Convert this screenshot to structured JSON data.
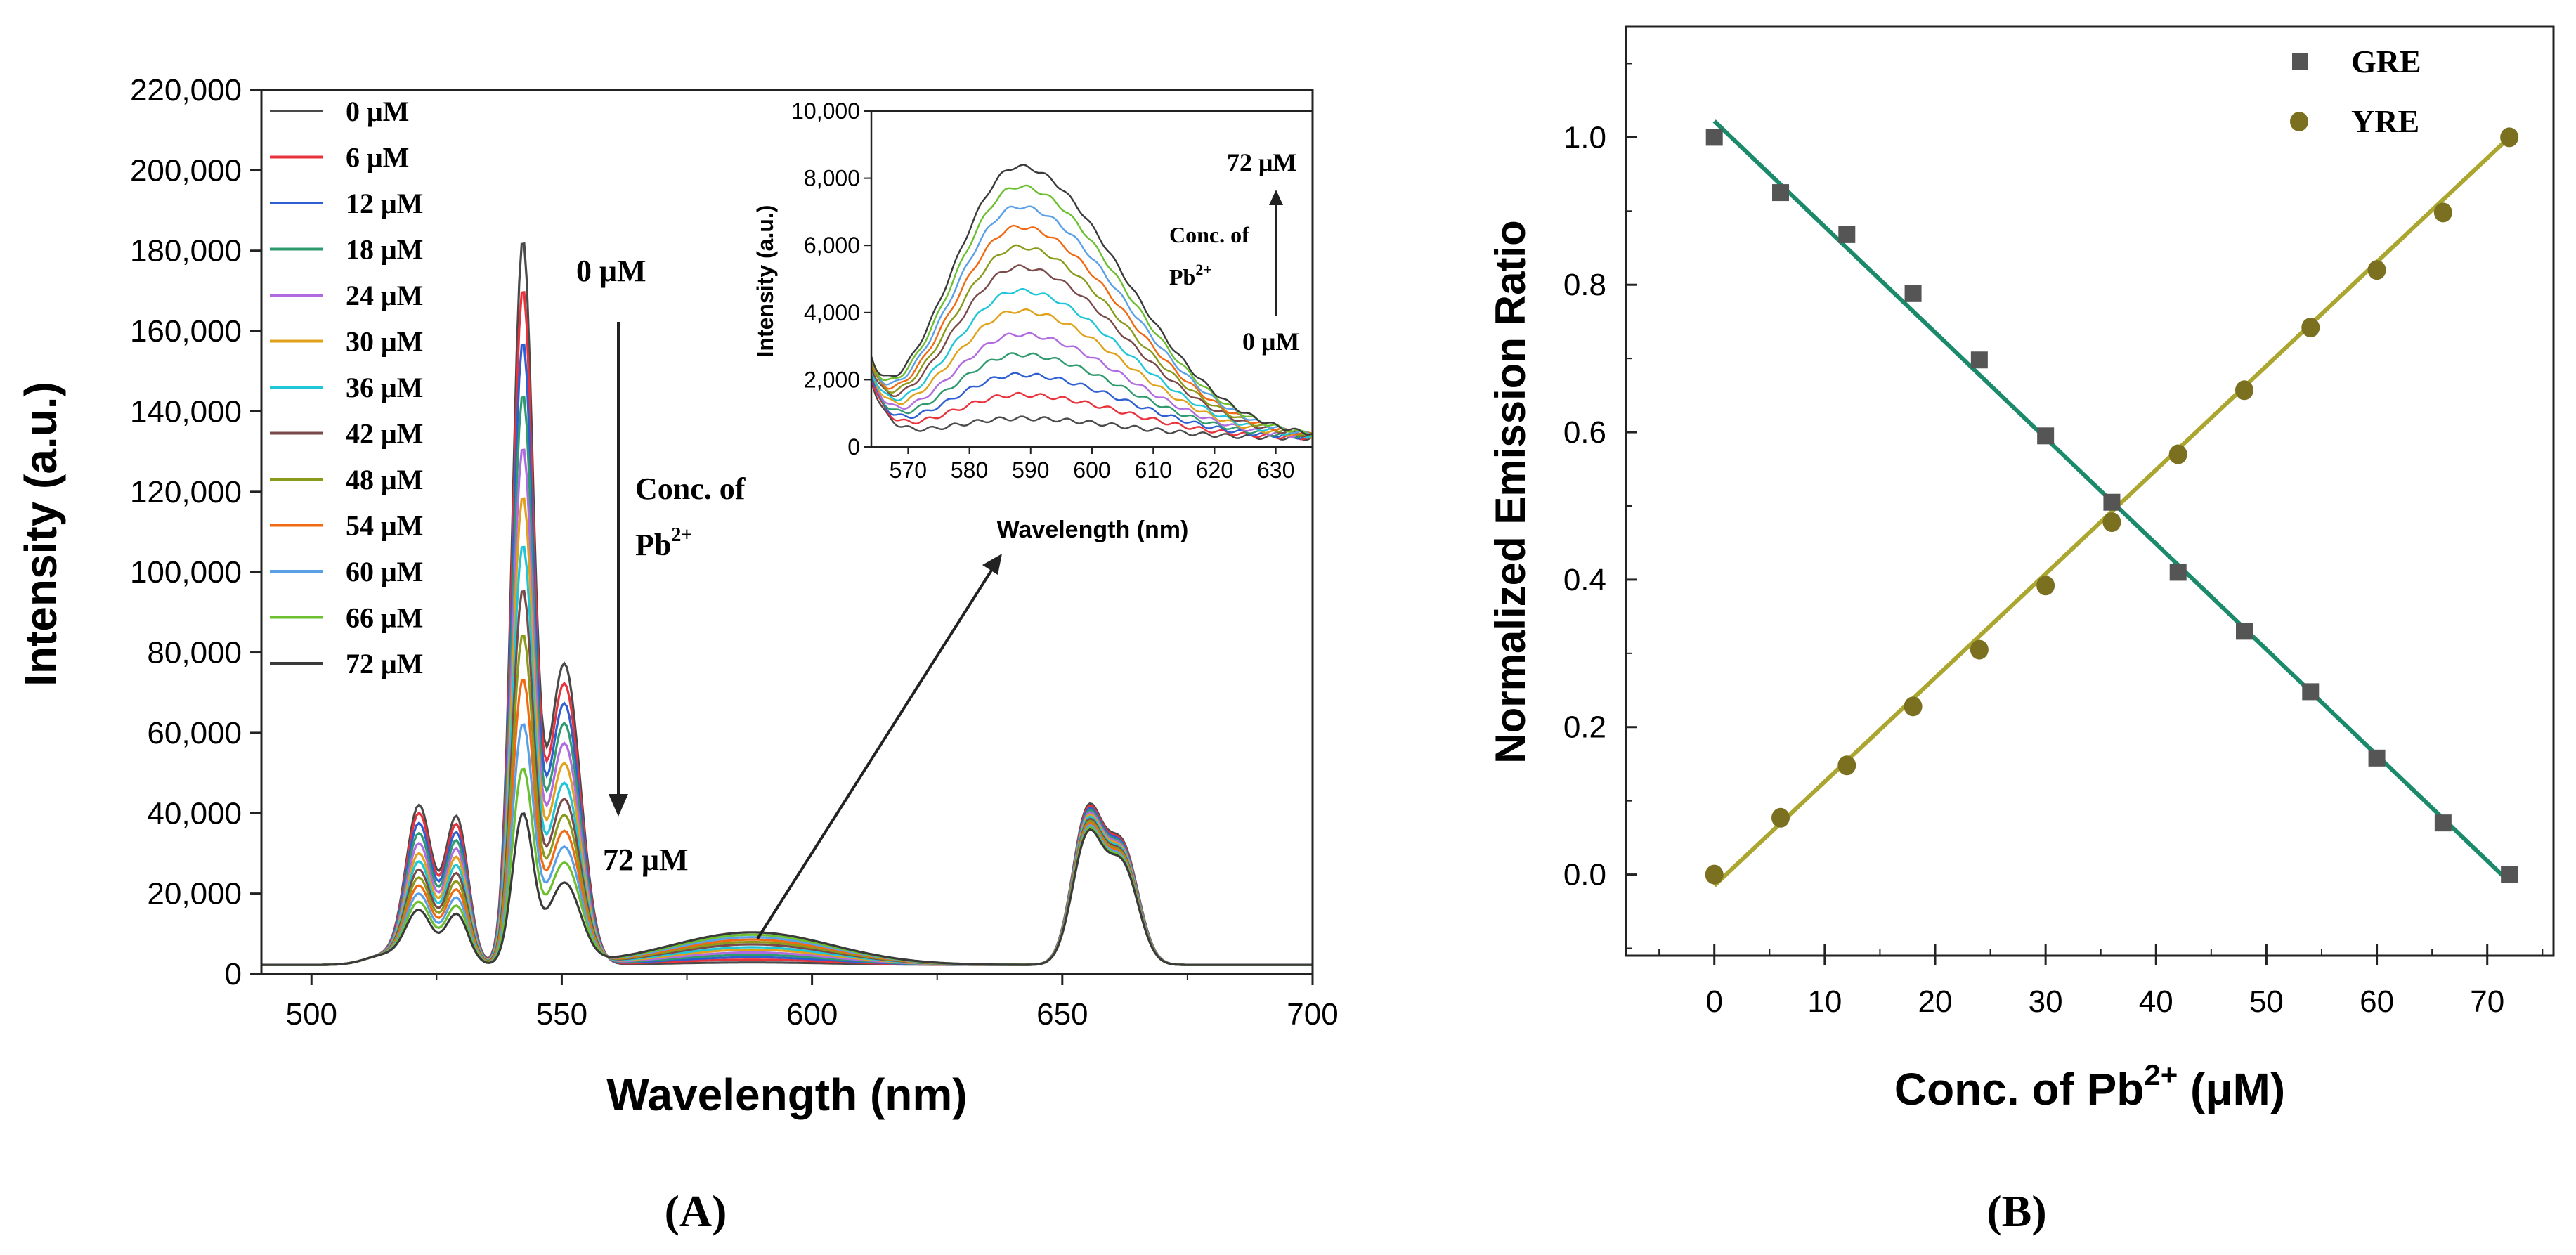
{
  "panel_labels": {
    "a": "(A)",
    "b": "(B)"
  },
  "chart_data": [
    {
      "id": "A",
      "type": "line",
      "xlabel": "Wavelength (nm)",
      "ylabel": "Intensity (a.u.)",
      "xlim": [
        490,
        700
      ],
      "ylim": [
        0,
        220000
      ],
      "xticks": [
        500,
        550,
        600,
        650,
        700
      ],
      "yticks": [
        0,
        20000,
        40000,
        60000,
        80000,
        100000,
        120000,
        140000,
        160000,
        180000,
        200000,
        220000
      ],
      "xtick_labels": [
        "500",
        "550",
        "600",
        "650",
        "700"
      ],
      "ytick_labels": [
        "0",
        "20,000",
        "40,000",
        "60,000",
        "80,000",
        "100,000",
        "120,000",
        "140,000",
        "160,000",
        "180,000",
        "200,000",
        "220,000"
      ],
      "legend": {
        "position": "top-left",
        "entries": [
          "0 μM",
          "6 μM",
          "12 μM",
          "18 μM",
          "24 μM",
          "30 μM",
          "36 μM",
          "42 μM",
          "48 μM",
          "54 μM",
          "60 μM",
          "66 μM",
          "72 μM"
        ]
      },
      "annotations": {
        "top": "0 μM",
        "conc_line1": "Conc. of",
        "conc_line2": "Pb",
        "conc_sup": "2+",
        "bottom": "72 μM"
      },
      "series": [
        {
          "name": "0 μM",
          "color": "#4a4a4a",
          "peak_542": 178000,
          "peak_521": 39000,
          "peak_529": 36500,
          "shoulder_550": 75000,
          "peak_588": 600,
          "peak_655": 37000
        },
        {
          "name": "6 μM",
          "color": "#e8323c",
          "peak_542": 166000,
          "peak_521": 37000,
          "peak_529": 34500,
          "shoulder_550": 70000,
          "peak_588": 1300,
          "peak_655": 36500
        },
        {
          "name": "12 μM",
          "color": "#2d5fd2",
          "peak_542": 153000,
          "peak_521": 34500,
          "peak_529": 32500,
          "shoulder_550": 65000,
          "peak_588": 1900,
          "peak_655": 36000
        },
        {
          "name": "18 μM",
          "color": "#2f9a6e",
          "peak_542": 140000,
          "peak_521": 32000,
          "peak_529": 30500,
          "shoulder_550": 60000,
          "peak_588": 2500,
          "peak_655": 35500
        },
        {
          "name": "24 μM",
          "color": "#b06be0",
          "peak_542": 127000,
          "peak_521": 29500,
          "peak_529": 28500,
          "shoulder_550": 55000,
          "peak_588": 3100,
          "peak_655": 35000
        },
        {
          "name": "30 μM",
          "color": "#e0a21a",
          "peak_542": 115000,
          "peak_521": 27000,
          "peak_529": 26500,
          "shoulder_550": 50000,
          "peak_588": 3800,
          "peak_655": 34500
        },
        {
          "name": "36 μM",
          "color": "#1fc6d8",
          "peak_542": 103000,
          "peak_521": 25000,
          "peak_529": 24500,
          "shoulder_550": 45000,
          "peak_588": 4400,
          "peak_655": 34000
        },
        {
          "name": "42 μM",
          "color": "#7a4a4a",
          "peak_542": 92000,
          "peak_521": 23000,
          "peak_529": 22500,
          "shoulder_550": 41000,
          "peak_588": 5100,
          "peak_655": 33500
        },
        {
          "name": "48 μM",
          "color": "#8a9a1a",
          "peak_542": 81000,
          "peak_521": 21000,
          "peak_529": 20500,
          "shoulder_550": 37000,
          "peak_588": 5700,
          "peak_655": 33000
        },
        {
          "name": "54 μM",
          "color": "#f06a14",
          "peak_542": 70000,
          "peak_521": 19000,
          "peak_529": 18500,
          "shoulder_550": 33000,
          "peak_588": 6300,
          "peak_655": 32500
        },
        {
          "name": "60 μM",
          "color": "#5aa0e6",
          "peak_542": 59000,
          "peak_521": 17000,
          "peak_529": 16500,
          "shoulder_550": 29000,
          "peak_588": 6900,
          "peak_655": 32000
        },
        {
          "name": "66 μM",
          "color": "#6cc030",
          "peak_542": 48000,
          "peak_521": 15000,
          "peak_529": 14500,
          "shoulder_550": 25000,
          "peak_588": 7500,
          "peak_655": 31500
        },
        {
          "name": "72 μM",
          "color": "#3a3a3a",
          "peak_542": 37000,
          "peak_521": 13000,
          "peak_529": 12500,
          "shoulder_550": 20000,
          "peak_588": 8100,
          "peak_655": 31000
        }
      ]
    },
    {
      "id": "A-inset",
      "type": "line",
      "xlabel": "Wavelength (nm)",
      "ylabel": "Intensity (a.u.)",
      "xlim": [
        564,
        636
      ],
      "ylim": [
        0,
        10000
      ],
      "xticks": [
        570,
        580,
        590,
        600,
        610,
        620,
        630
      ],
      "yticks": [
        0,
        2000,
        4000,
        6000,
        8000,
        10000
      ],
      "xtick_labels": [
        "570",
        "580",
        "590",
        "600",
        "610",
        "620",
        "630"
      ],
      "ytick_labels": [
        "0",
        "2,000",
        "4,000",
        "6,000",
        "8,000",
        "10,000"
      ],
      "annotations": {
        "top": "72 μM",
        "conc_line1": "Conc. of",
        "conc_line2": "Pb",
        "conc_sup": "2+",
        "bottom": "0 μM"
      },
      "peak_wavelength": 588,
      "series_peaks": [
        600,
        1300,
        1900,
        2500,
        3100,
        3800,
        4400,
        5100,
        5700,
        6300,
        6900,
        7500,
        8100
      ]
    },
    {
      "id": "B",
      "type": "scatter",
      "xlabel": "Conc. of Pb",
      "xlabel_sup": "2+",
      "xlabel_unit": " (μM)",
      "ylabel": "Normalized Emission Ratio",
      "xlim": [
        -8,
        76
      ],
      "ylim": [
        -0.11,
        1.15
      ],
      "xticks": [
        0,
        10,
        20,
        30,
        40,
        50,
        60,
        70
      ],
      "yticks": [
        0.0,
        0.2,
        0.4,
        0.6,
        0.8,
        1.0
      ],
      "xtick_labels": [
        "0",
        "10",
        "20",
        "30",
        "40",
        "50",
        "60",
        "70"
      ],
      "ytick_labels": [
        "0.0",
        "0.2",
        "0.4",
        "0.6",
        "0.8",
        "1.0"
      ],
      "legend": {
        "position": "top-right",
        "entries": [
          "GRE",
          "YRE"
        ]
      },
      "x": [
        0,
        6,
        12,
        18,
        24,
        30,
        36,
        42,
        48,
        54,
        60,
        66,
        72
      ],
      "series": [
        {
          "name": "GRE",
          "marker": "square",
          "marker_color": "#555555",
          "fit_color": "#1a8a6a",
          "values": [
            1.0,
            0.925,
            0.868,
            0.788,
            0.698,
            0.595,
            0.505,
            0.41,
            0.33,
            0.248,
            0.158,
            0.07,
            0.0
          ],
          "fit": [
            1.022,
            -0.01
          ]
        },
        {
          "name": "YRE",
          "marker": "circle",
          "marker_color": "#7a7020",
          "fit_color": "#aaa630",
          "values": [
            0.0,
            0.077,
            0.148,
            0.228,
            0.305,
            0.392,
            0.478,
            0.57,
            0.657,
            0.742,
            0.82,
            0.898,
            1.0
          ],
          "fit": [
            -0.015,
            1.0
          ]
        }
      ]
    }
  ]
}
